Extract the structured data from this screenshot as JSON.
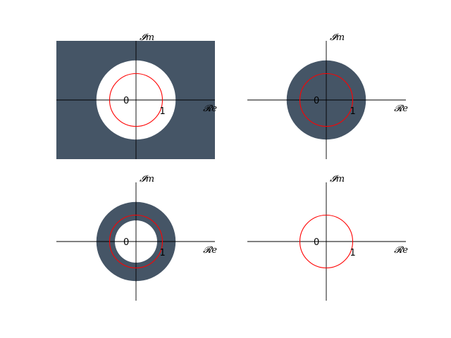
{
  "colors": {
    "region_fill": "#455566",
    "unit_circle": "#ff0000",
    "axis": "#000000",
    "background": "#ffffff"
  },
  "panels": [
    {
      "region": "exterior",
      "region_outer_radius": null,
      "region_inner_radius": 1.5,
      "unit_circle_radius": 1,
      "xlabel": "𝓡e",
      "ylabel": "𝓘m",
      "origin_label": "0",
      "unit_label": "1"
    },
    {
      "region": "disk",
      "region_outer_radius": 1.5,
      "region_inner_radius": 0,
      "unit_circle_radius": 1,
      "xlabel": "𝓡e",
      "ylabel": "𝓘m",
      "origin_label": "0",
      "unit_label": "1"
    },
    {
      "region": "annulus",
      "region_outer_radius": 1.5,
      "region_inner_radius": 0.8,
      "unit_circle_radius": 1,
      "xlabel": "𝓡e",
      "ylabel": "𝓘m",
      "origin_label": "0",
      "unit_label": "1"
    },
    {
      "region": "none",
      "region_outer_radius": null,
      "region_inner_radius": null,
      "unit_circle_radius": 1,
      "xlabel": "𝓡e",
      "ylabel": "𝓘m",
      "origin_label": "0",
      "unit_label": "1"
    }
  ]
}
